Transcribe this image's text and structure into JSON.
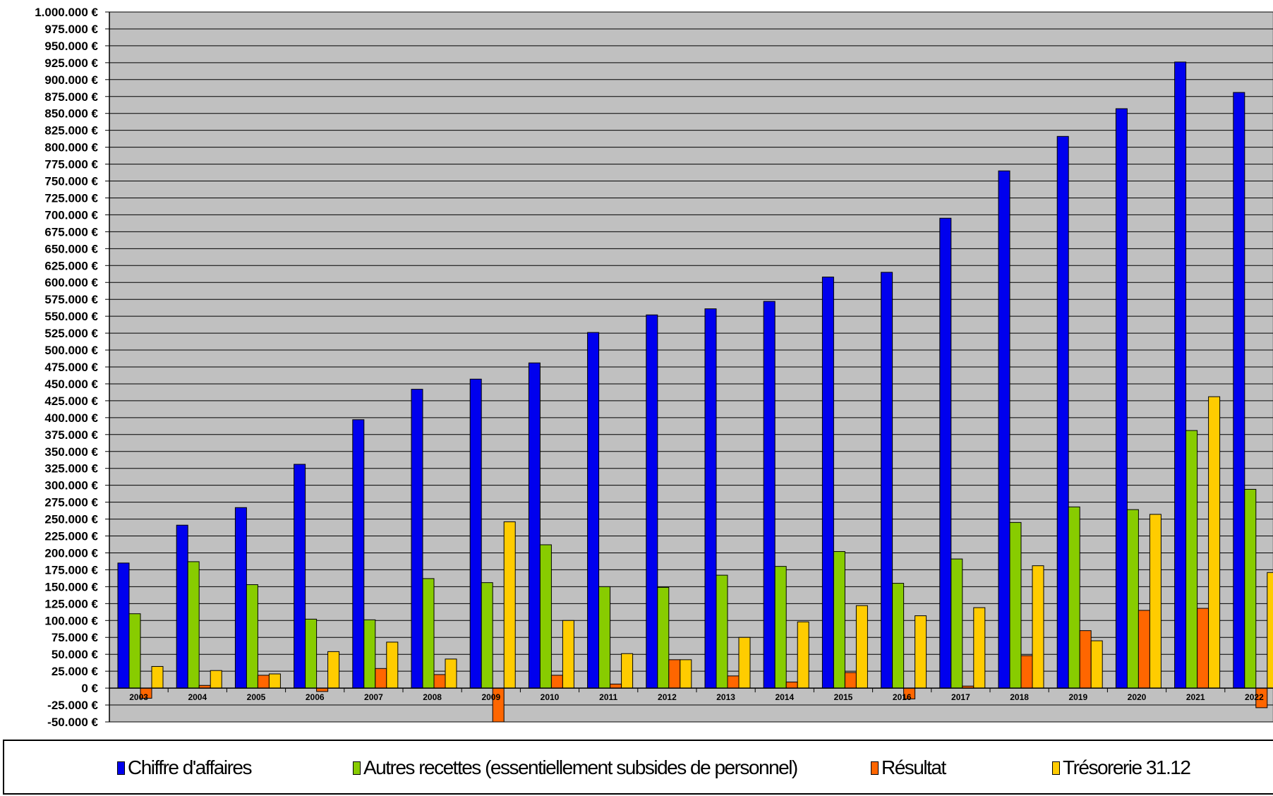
{
  "chart_data": {
    "type": "bar",
    "categories": [
      "2003",
      "2004",
      "2005",
      "2006",
      "2007",
      "2008",
      "2009",
      "2010",
      "2011",
      "2012",
      "2013",
      "2014",
      "2015",
      "2016",
      "2017",
      "2018",
      "2019",
      "2020",
      "2021",
      "2022"
    ],
    "series": [
      {
        "name": "Chiffre d'affaires",
        "color": "#0000ee",
        "values": [
          185000,
          241000,
          267000,
          331000,
          397000,
          442000,
          457000,
          481000,
          526000,
          552000,
          561000,
          572000,
          608000,
          615000,
          695000,
          765000,
          816000,
          857000,
          926000,
          881000
        ]
      },
      {
        "name": "Autres recettes (essentiellement subsides de personnel)",
        "color": "#88cc00",
        "values": [
          110000,
          187000,
          153000,
          102000,
          101000,
          162000,
          156000,
          212000,
          150000,
          149000,
          167000,
          180000,
          202000,
          155000,
          191000,
          245000,
          268000,
          264000,
          381000,
          294000
        ]
      },
      {
        "name": "Résultat",
        "color": "#ff6600",
        "values": [
          -15000,
          4000,
          19000,
          -5000,
          29000,
          20000,
          -50000,
          19000,
          6000,
          42000,
          18000,
          9000,
          23000,
          -16000,
          3000,
          48000,
          85000,
          115000,
          118000,
          -29000
        ]
      },
      {
        "name": "Trésorerie 31.12",
        "color": "#ffcc00",
        "values": [
          32000,
          26000,
          21000,
          54000,
          68000,
          43000,
          246000,
          100000,
          51000,
          42000,
          75000,
          98000,
          122000,
          107000,
          119000,
          181000,
          70000,
          257000,
          431000,
          171000
        ]
      }
    ],
    "ylim": [
      -50000,
      1000000
    ],
    "ytick_step": 25000,
    "ytick_labels": [
      "1.000.000 €",
      "975.000 €",
      "950.000 €",
      "925.000 €",
      "900.000 €",
      "875.000 €",
      "850.000 €",
      "825.000 €",
      "800.000 €",
      "775.000 €",
      "750.000 €",
      "725.000 €",
      "700.000 €",
      "675.000 €",
      "650.000 €",
      "625.000 €",
      "600.000 €",
      "575.000 €",
      "550.000 €",
      "525.000 €",
      "500.000 €",
      "475.000 €",
      "450.000 €",
      "425.000 €",
      "400.000 €",
      "375.000 €",
      "350.000 €",
      "325.000 €",
      "300.000 €",
      "275.000 €",
      "250.000 €",
      "225.000 €",
      "200.000 €",
      "175.000 €",
      "150.000 €",
      "125.000 €",
      "100.000 €",
      "75.000 €",
      "50.000 €",
      "25.000 €",
      "0 €",
      "-25.000 €",
      "-50.000 €"
    ],
    "grid": true,
    "legend_position": "bottom",
    "plot_background": "#c0c0c0"
  },
  "legend": {
    "items": [
      {
        "label": "Chiffre d'affaires",
        "color": "#0000ee"
      },
      {
        "label": "Autres recettes (essentiellement subsides de personnel)",
        "color": "#88cc00"
      },
      {
        "label": "Résultat",
        "color": "#ff6600"
      },
      {
        "label": "Trésorerie 31.12",
        "color": "#ffcc00"
      }
    ]
  }
}
